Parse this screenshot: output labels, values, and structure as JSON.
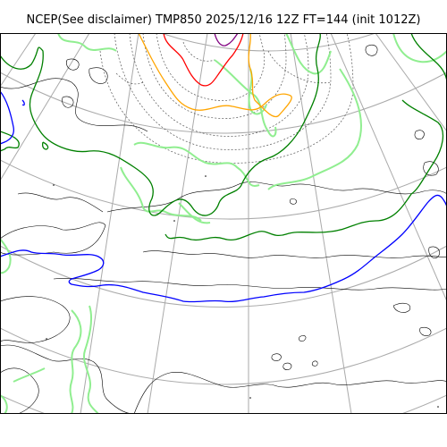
{
  "title": "NCEP(See disclaimer) TMP850 2025/12/16 12Z FT=144 (init 1012Z)",
  "map": {
    "variable": "TMP850",
    "contour_colors": {
      "coastline": "#000000",
      "graticule": "#aaaaaa",
      "dotted_isotherm": "#555555",
      "light_green": "#90ee90",
      "green": "#008000",
      "blue": "#0000ff",
      "orange": "#ffa500",
      "red": "#ff0000",
      "purple": "#800080"
    }
  }
}
